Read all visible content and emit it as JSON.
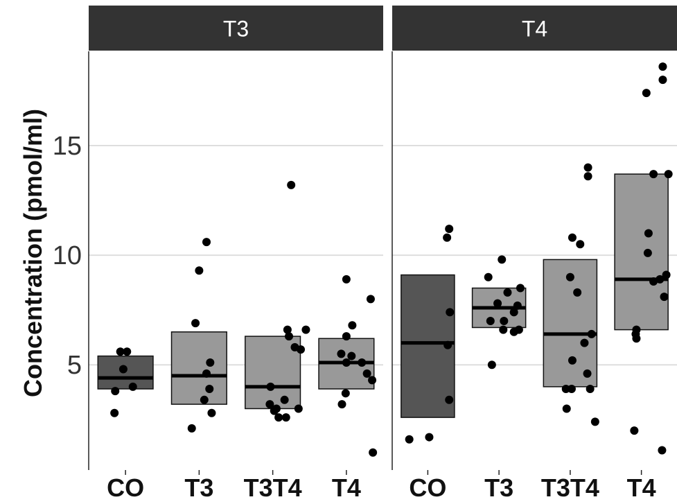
{
  "chart_data": {
    "type": "box",
    "ylabel": "Concentration (pmol/ml)",
    "xlabel": "",
    "ylim": [
      0.2,
      19.3
    ],
    "yticks": [
      5,
      10,
      15
    ],
    "grid": true,
    "colors": {
      "CO": "#555555",
      "T3": "#999999",
      "T3T4": "#999999",
      "T4": "#999999"
    },
    "panels": [
      {
        "title": "T3",
        "groups": [
          {
            "label": "CO",
            "lower": 3.9,
            "median": 4.4,
            "upper": 5.4,
            "points": [
              [
                0.93,
                5.6
              ],
              [
                1.02,
                5.6
              ],
              [
                0.97,
                4.8
              ],
              [
                1.1,
                4.0
              ],
              [
                0.86,
                3.8
              ],
              [
                0.85,
                2.8
              ]
            ]
          },
          {
            "label": "T3",
            "lower": 3.2,
            "median": 4.5,
            "upper": 6.5,
            "points": [
              [
                2.1,
                10.6
              ],
              [
                2.0,
                9.3
              ],
              [
                1.95,
                6.9
              ],
              [
                2.15,
                5.1
              ],
              [
                2.1,
                4.6
              ],
              [
                2.14,
                3.9
              ],
              [
                2.07,
                3.4
              ],
              [
                2.17,
                2.8
              ],
              [
                1.9,
                2.1
              ]
            ]
          },
          {
            "label": "T3T4",
            "lower": 3.0,
            "median": 4.0,
            "upper": 6.3,
            "points": [
              [
                3.25,
                13.2
              ],
              [
                3.2,
                6.6
              ],
              [
                3.45,
                6.6
              ],
              [
                3.22,
                6.3
              ],
              [
                3.3,
                5.8
              ],
              [
                3.38,
                5.7
              ],
              [
                2.97,
                4.0
              ],
              [
                3.16,
                3.4
              ],
              [
                2.96,
                3.2
              ],
              [
                3.05,
                3.0
              ],
              [
                3.02,
                2.9
              ],
              [
                3.35,
                3.0
              ],
              [
                3.18,
                2.6
              ],
              [
                3.08,
                2.6
              ]
            ]
          },
          {
            "label": "T4",
            "lower": 3.9,
            "median": 5.1,
            "upper": 6.2,
            "points": [
              [
                4.0,
                8.9
              ],
              [
                4.33,
                8.0
              ],
              [
                4.08,
                6.8
              ],
              [
                4.0,
                6.3
              ],
              [
                3.93,
                5.5
              ],
              [
                4.07,
                5.4
              ],
              [
                4.0,
                5.1
              ],
              [
                4.21,
                5.1
              ],
              [
                4.28,
                4.6
              ],
              [
                4.35,
                4.3
              ],
              [
                3.99,
                3.7
              ],
              [
                3.94,
                3.2
              ],
              [
                4.36,
                1.0
              ]
            ]
          }
        ]
      },
      {
        "title": "T4",
        "groups": [
          {
            "label": "CO",
            "lower": 2.6,
            "median": 6.0,
            "upper": 9.1,
            "points": [
              [
                1.3,
                11.2
              ],
              [
                1.27,
                10.8
              ],
              [
                1.31,
                7.4
              ],
              [
                1.28,
                5.9
              ],
              [
                1.3,
                3.4
              ],
              [
                1.02,
                1.7
              ],
              [
                0.74,
                1.6
              ]
            ]
          },
          {
            "label": "T3",
            "lower": 6.7,
            "median": 7.6,
            "upper": 8.5,
            "points": [
              [
                2.04,
                9.8
              ],
              [
                1.85,
                9.0
              ],
              [
                2.3,
                8.5
              ],
              [
                2.12,
                8.3
              ],
              [
                1.98,
                7.8
              ],
              [
                2.26,
                7.7
              ],
              [
                2.21,
                7.4
              ],
              [
                2.07,
                7.0
              ],
              [
                1.88,
                7.0
              ],
              [
                2.06,
                6.6
              ],
              [
                2.28,
                6.6
              ],
              [
                2.21,
                6.5
              ],
              [
                1.9,
                5.0
              ]
            ]
          },
          {
            "label": "T3T4",
            "lower": 4.0,
            "median": 6.4,
            "upper": 9.8,
            "points": [
              [
                3.25,
                14.0
              ],
              [
                3.25,
                13.6
              ],
              [
                3.03,
                10.8
              ],
              [
                3.14,
                10.5
              ],
              [
                3.0,
                9.0
              ],
              [
                3.1,
                8.3
              ],
              [
                3.3,
                6.4
              ],
              [
                3.2,
                6.0
              ],
              [
                3.03,
                5.2
              ],
              [
                3.24,
                4.6
              ],
              [
                2.94,
                3.9
              ],
              [
                3.02,
                3.9
              ],
              [
                3.28,
                3.9
              ],
              [
                2.95,
                3.0
              ],
              [
                3.35,
                2.4
              ]
            ]
          },
          {
            "label": "T4",
            "lower": 6.6,
            "median": 8.9,
            "upper": 13.7,
            "points": [
              [
                4.3,
                18.6
              ],
              [
                4.3,
                18.0
              ],
              [
                4.07,
                17.4
              ],
              [
                4.17,
                13.7
              ],
              [
                4.38,
                13.7
              ],
              [
                4.1,
                11.0
              ],
              [
                4.09,
                10.1
              ],
              [
                4.35,
                9.1
              ],
              [
                4.26,
                8.9
              ],
              [
                4.17,
                8.8
              ],
              [
                4.32,
                8.1
              ],
              [
                3.93,
                6.6
              ],
              [
                3.92,
                6.4
              ],
              [
                3.93,
                6.2
              ],
              [
                3.9,
                2.0
              ],
              [
                4.29,
                1.1
              ]
            ]
          }
        ]
      }
    ]
  }
}
